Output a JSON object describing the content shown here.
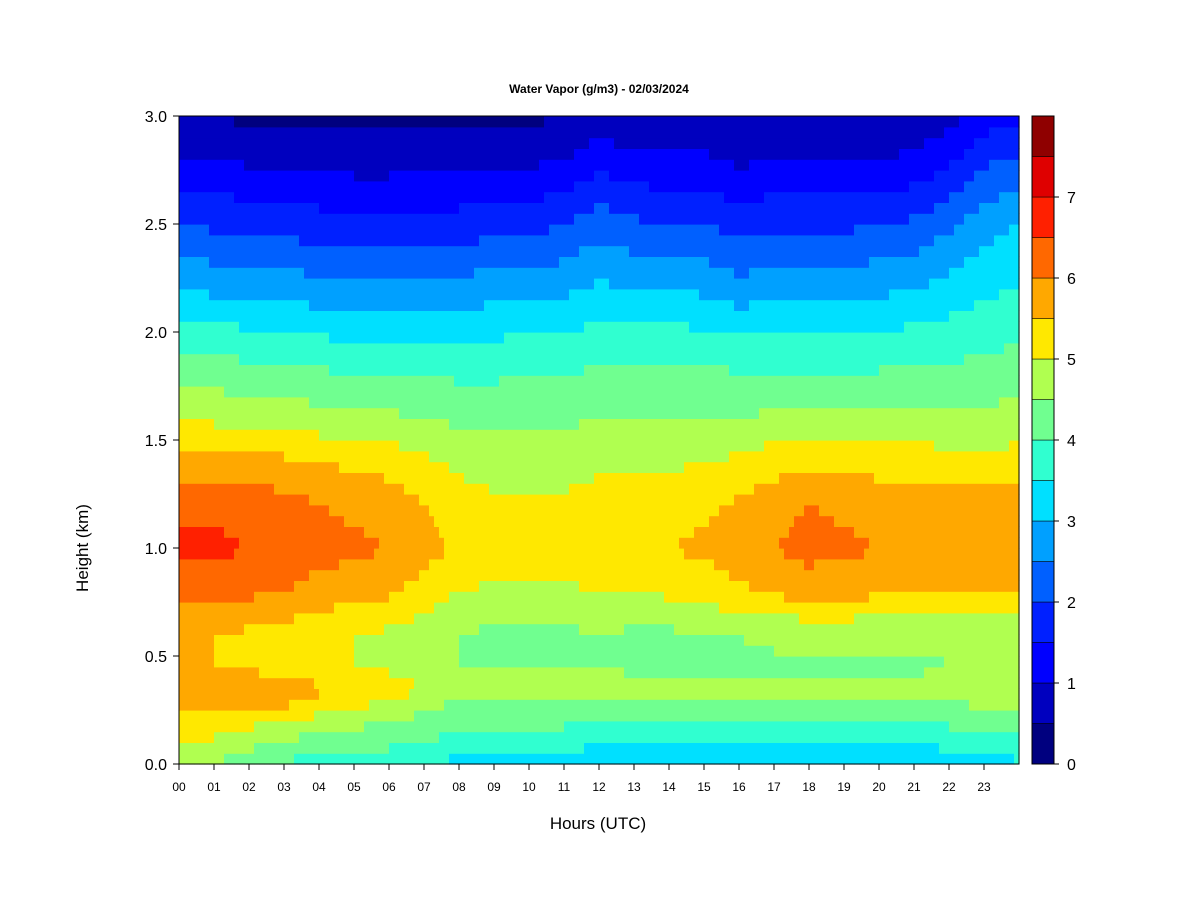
{
  "chart_data": {
    "type": "heatmap",
    "title": "Water Vapor (g/m3) - 02/03/2024",
    "xlabel": "Hours (UTC)",
    "ylabel": "Height (km)",
    "xlim": [
      0,
      24
    ],
    "ylim": [
      0,
      3
    ],
    "x_ticks": [
      "00",
      "01",
      "02",
      "03",
      "04",
      "05",
      "06",
      "07",
      "08",
      "09",
      "10",
      "11",
      "12",
      "13",
      "14",
      "15",
      "16",
      "17",
      "18",
      "19",
      "20",
      "21",
      "22",
      "23"
    ],
    "y_ticks": [
      "0.0",
      "0.5",
      "1.0",
      "1.5",
      "2.0",
      "2.5",
      "3.0"
    ],
    "colorbar": {
      "levels": [
        0,
        0.5,
        1,
        1.5,
        2,
        2.5,
        3,
        3.5,
        4,
        4.5,
        5,
        5.5,
        6,
        6.5,
        7,
        7.5
      ],
      "colors": [
        "#00007f",
        "#0000bf",
        "#0000ff",
        "#0020ff",
        "#0060ff",
        "#00a0ff",
        "#00e0ff",
        "#30ffd0",
        "#70ff90",
        "#b0ff50",
        "#ffe800",
        "#ffa800",
        "#ff6800",
        "#ff2000",
        "#df0000",
        "#8f0000"
      ],
      "tick_labels": [
        "0",
        "1",
        "2",
        "3",
        "4",
        "5",
        "6",
        "7"
      ]
    },
    "profile_heights_km": [
      0.0,
      0.15,
      0.3,
      0.35,
      0.45,
      0.6,
      0.8,
      1.0,
      1.2,
      1.4,
      1.6,
      1.9,
      2.2,
      2.5,
      2.8,
      3.0
    ],
    "profiles": [
      {
        "hour": 0,
        "values": [
          4.6,
          5.2,
          5.8,
          6.0,
          5.6,
          5.5,
          6.2,
          6.6,
          6.4,
          5.7,
          4.9,
          4.0,
          3.0,
          2.0,
          1.0,
          0.5
        ]
      },
      {
        "hour": 1,
        "values": [
          4.5,
          5.1,
          5.8,
          6.0,
          5.5,
          5.5,
          6.2,
          6.6,
          6.4,
          5.7,
          4.9,
          4.0,
          2.9,
          1.9,
          1.0,
          0.5
        ]
      },
      {
        "hour": 2,
        "values": [
          4.2,
          4.9,
          5.7,
          5.9,
          5.4,
          5.4,
          6.1,
          6.5,
          6.3,
          5.7,
          4.8,
          3.9,
          2.9,
          1.9,
          0.9,
          0.4
        ]
      },
      {
        "hour": 3,
        "values": [
          3.9,
          4.7,
          5.7,
          5.8,
          5.3,
          5.3,
          6.0,
          6.4,
          6.2,
          5.6,
          4.8,
          3.9,
          2.8,
          1.8,
          0.9,
          0.4
        ]
      },
      {
        "hour": 4,
        "values": [
          3.8,
          4.5,
          5.4,
          5.6,
          5.1,
          5.1,
          5.8,
          6.2,
          6.0,
          5.5,
          4.7,
          3.8,
          2.7,
          1.7,
          0.9,
          0.4
        ]
      },
      {
        "hour": 5,
        "values": [
          3.7,
          4.4,
          5.2,
          5.4,
          5.0,
          5.0,
          5.7,
          6.1,
          5.9,
          5.4,
          4.6,
          3.7,
          2.6,
          1.6,
          0.8,
          0.4
        ]
      },
      {
        "hour": 6,
        "values": [
          3.7,
          4.3,
          5.0,
          5.3,
          4.9,
          4.9,
          5.6,
          6.0,
          5.8,
          5.3,
          4.6,
          3.7,
          2.6,
          1.6,
          0.8,
          0.4
        ]
      },
      {
        "hour": 7,
        "values": [
          3.6,
          4.2,
          4.7,
          5.0,
          4.7,
          4.7,
          5.3,
          5.7,
          5.5,
          5.1,
          4.5,
          3.7,
          2.7,
          1.7,
          0.8,
          0.4
        ]
      },
      {
        "hour": 8,
        "values": [
          3.3,
          4.0,
          4.5,
          4.8,
          4.5,
          4.5,
          5.0,
          5.4,
          5.2,
          4.9,
          4.4,
          3.7,
          2.7,
          1.7,
          0.9,
          0.4
        ]
      },
      {
        "hour": 9,
        "values": [
          3.3,
          4.0,
          4.5,
          4.8,
          4.5,
          4.4,
          4.9,
          5.3,
          5.1,
          4.8,
          4.4,
          3.7,
          2.8,
          1.8,
          0.9,
          0.4
        ]
      },
      {
        "hour": 10,
        "values": [
          3.3,
          4.0,
          4.6,
          4.9,
          4.5,
          4.4,
          4.9,
          5.3,
          5.1,
          4.8,
          4.4,
          3.8,
          2.8,
          1.8,
          0.9,
          0.4
        ]
      },
      {
        "hour": 11,
        "values": [
          3.2,
          3.9,
          4.5,
          4.9,
          4.5,
          4.4,
          4.9,
          5.3,
          5.1,
          4.8,
          4.4,
          3.8,
          2.9,
          2.0,
          1.0,
          0.5
        ]
      },
      {
        "hour": 12,
        "values": [
          3.1,
          3.8,
          4.4,
          4.8,
          4.5,
          4.5,
          5.0,
          5.4,
          5.2,
          4.9,
          4.5,
          3.9,
          3.1,
          2.3,
          1.3,
          0.7
        ]
      },
      {
        "hour": 13,
        "values": [
          3.0,
          3.7,
          4.4,
          4.7,
          4.4,
          4.4,
          5.0,
          5.4,
          5.2,
          4.9,
          4.5,
          3.9,
          3.0,
          2.1,
          1.1,
          0.6
        ]
      },
      {
        "hour": 14,
        "values": [
          3.0,
          3.7,
          4.4,
          4.7,
          4.4,
          4.4,
          5.1,
          5.5,
          5.3,
          4.9,
          4.5,
          3.9,
          3.0,
          2.0,
          1.1,
          0.6
        ]
      },
      {
        "hour": 15,
        "values": [
          3.0,
          3.7,
          4.4,
          4.7,
          4.4,
          4.5,
          5.2,
          5.6,
          5.4,
          5.0,
          4.5,
          3.9,
          2.9,
          2.0,
          1.1,
          0.6
        ]
      },
      {
        "hour": 16,
        "values": [
          3.0,
          3.7,
          4.4,
          4.7,
          4.4,
          4.5,
          5.4,
          5.8,
          5.6,
          5.1,
          4.5,
          3.8,
          2.7,
          1.8,
          0.9,
          0.5
        ]
      },
      {
        "hour": 17,
        "values": [
          3.0,
          3.7,
          4.4,
          4.7,
          4.4,
          4.6,
          5.6,
          6.0,
          5.8,
          5.3,
          4.6,
          3.8,
          2.8,
          1.9,
          1.0,
          0.5
        ]
      },
      {
        "hour": 18,
        "values": [
          3.0,
          3.7,
          4.4,
          4.7,
          4.4,
          4.6,
          5.7,
          6.2,
          6.0,
          5.4,
          4.6,
          3.8,
          2.8,
          1.9,
          1.0,
          0.5
        ]
      },
      {
        "hour": 19,
        "values": [
          3.0,
          3.7,
          4.4,
          4.7,
          4.4,
          4.6,
          5.7,
          6.1,
          5.9,
          5.4,
          4.6,
          3.8,
          2.8,
          1.9,
          1.0,
          0.5
        ]
      },
      {
        "hour": 20,
        "values": [
          3.0,
          3.7,
          4.4,
          4.7,
          4.4,
          4.6,
          5.6,
          6.0,
          5.8,
          5.3,
          4.6,
          3.8,
          2.9,
          2.0,
          1.0,
          0.5
        ]
      },
      {
        "hour": 21,
        "values": [
          3.0,
          3.7,
          4.4,
          4.7,
          4.4,
          4.6,
          5.6,
          6.0,
          5.8,
          5.3,
          4.6,
          3.9,
          3.0,
          2.1,
          1.1,
          0.6
        ]
      },
      {
        "hour": 22,
        "values": [
          3.2,
          3.9,
          4.5,
          4.8,
          4.5,
          4.6,
          5.5,
          5.9,
          5.7,
          5.2,
          4.6,
          3.9,
          3.2,
          2.4,
          1.4,
          0.8
        ]
      },
      {
        "hour": 23,
        "values": [
          3.3,
          4.0,
          4.7,
          4.9,
          4.6,
          4.6,
          5.5,
          5.9,
          5.7,
          5.2,
          4.6,
          4.0,
          3.4,
          2.8,
          1.9,
          1.2
        ]
      },
      {
        "hour": 24,
        "values": [
          3.4,
          4.1,
          4.7,
          5.0,
          4.6,
          4.7,
          5.5,
          5.9,
          5.7,
          5.2,
          4.7,
          4.1,
          3.5,
          3.0,
          2.1,
          1.4
        ]
      }
    ]
  }
}
